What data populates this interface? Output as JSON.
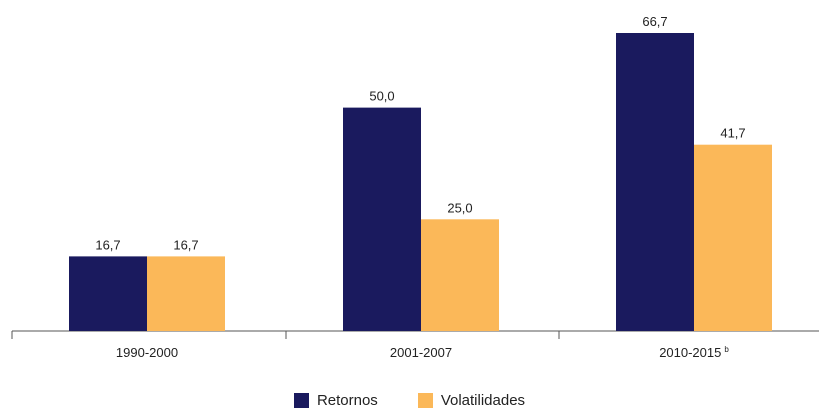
{
  "chart_data": {
    "type": "bar",
    "categories": [
      "1990-2000",
      "2001-2007",
      "2010-2015"
    ],
    "category_superscripts": [
      "",
      "",
      "b"
    ],
    "series": [
      {
        "name": "Retornos",
        "values": [
          16.7,
          50.0,
          66.7
        ],
        "color": "#1a1a5e"
      },
      {
        "name": "Volatilidades",
        "values": [
          16.7,
          25.0,
          41.7
        ],
        "color": "#fbb859"
      }
    ],
    "data_labels": [
      [
        "16,7",
        "50,0",
        "66,7"
      ],
      [
        "16,7",
        "25,0",
        "41,7"
      ]
    ],
    "ylim": [
      0,
      100
    ],
    "grid": false,
    "legend_position": "bottom"
  }
}
